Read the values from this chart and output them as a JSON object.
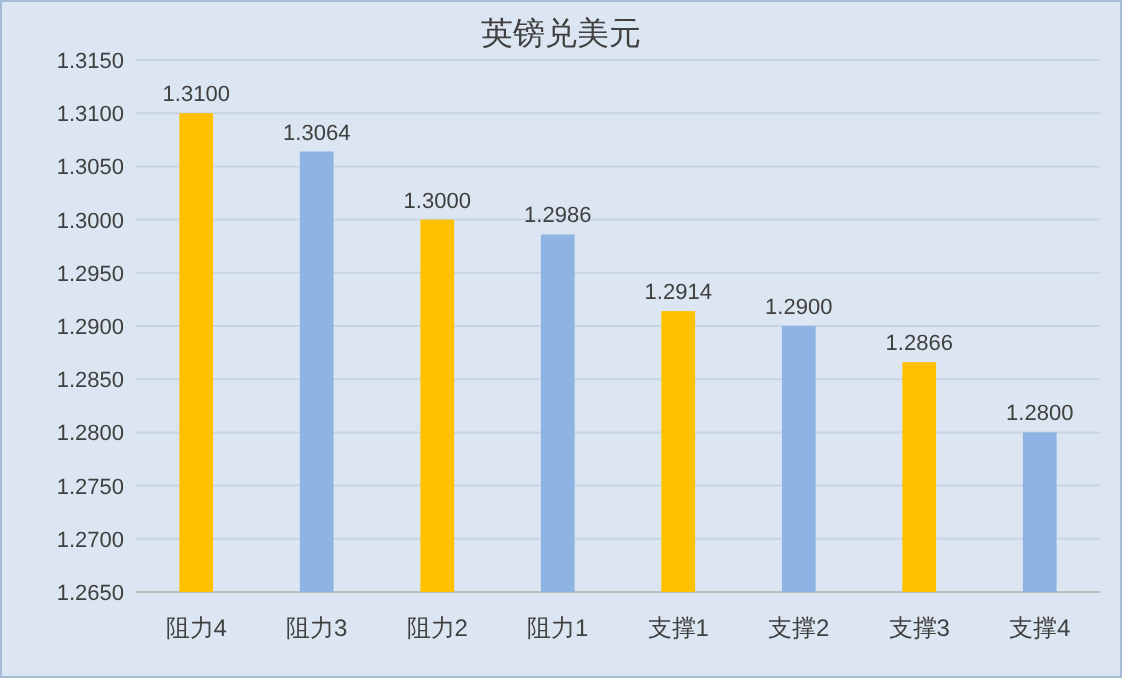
{
  "chart_data": {
    "type": "bar",
    "title": "英镑兑美元",
    "categories": [
      "阻力4",
      "阻力3",
      "阻力2",
      "阻力1",
      "支撑1",
      "支撑2",
      "支撑3",
      "支撑4"
    ],
    "values": [
      1.31,
      1.3064,
      1.3,
      1.2986,
      1.2914,
      1.29,
      1.2866,
      1.28
    ],
    "colors": [
      "#ffc000",
      "#8eb4e3",
      "#ffc000",
      "#8eb4e3",
      "#ffc000",
      "#8eb4e3",
      "#ffc000",
      "#8eb4e3"
    ],
    "ylim": [
      1.265,
      1.315
    ],
    "yticks": [
      {
        "value": 1.265,
        "label": "1.2650"
      },
      {
        "value": 1.27,
        "label": "1.2700"
      },
      {
        "value": 1.275,
        "label": "1.2750"
      },
      {
        "value": 1.28,
        "label": "1.2800"
      },
      {
        "value": 1.285,
        "label": "1.2850"
      },
      {
        "value": 1.29,
        "label": "1.2900"
      },
      {
        "value": 1.295,
        "label": "1.2950"
      },
      {
        "value": 1.3,
        "label": "1.3000"
      },
      {
        "value": 1.305,
        "label": "1.3050"
      },
      {
        "value": 1.31,
        "label": "1.3100"
      },
      {
        "value": 1.315,
        "label": "1.3150"
      }
    ],
    "grid": "y",
    "value_labels": [
      "1.3100",
      "1.3064",
      "1.3000",
      "1.2986",
      "1.2914",
      "1.2900",
      "1.2866",
      "1.2800"
    ]
  }
}
